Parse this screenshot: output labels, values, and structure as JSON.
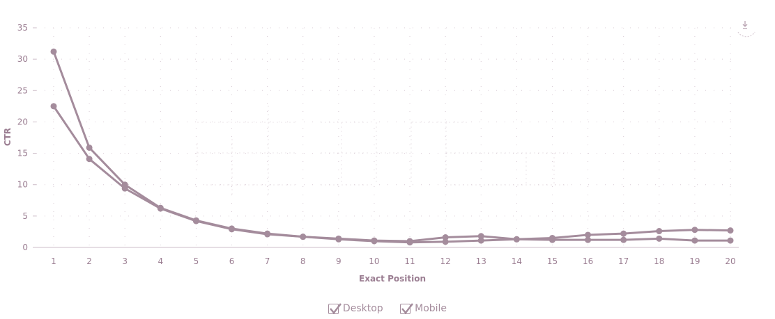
{
  "chart_data": {
    "type": "line",
    "x": [
      1,
      2,
      3,
      4,
      5,
      6,
      7,
      8,
      9,
      10,
      11,
      12,
      13,
      14,
      15,
      16,
      17,
      18,
      19,
      20
    ],
    "series": [
      {
        "name": "Desktop",
        "values": [
          31.2,
          15.9,
          10.0,
          6.3,
          4.3,
          3.0,
          2.2,
          1.7,
          1.4,
          1.1,
          1.0,
          1.6,
          1.8,
          1.3,
          1.5,
          2.0,
          2.2,
          2.6,
          2.8,
          2.7
        ]
      },
      {
        "name": "Mobile",
        "values": [
          22.5,
          14.1,
          9.4,
          6.2,
          4.2,
          2.9,
          2.1,
          1.7,
          1.3,
          1.0,
          0.8,
          0.9,
          1.1,
          1.3,
          1.2,
          1.2,
          1.2,
          1.4,
          1.1,
          1.1
        ]
      }
    ],
    "xlabel": "Exact Position",
    "ylabel": "CTR",
    "ylim": [
      0,
      35
    ],
    "yticks": [
      0,
      5,
      10,
      15,
      20,
      25,
      30,
      35
    ],
    "color": "#a48c9c",
    "grid": "dotted",
    "legend_position": "bottom-center"
  },
  "export_icon": "download-icon"
}
